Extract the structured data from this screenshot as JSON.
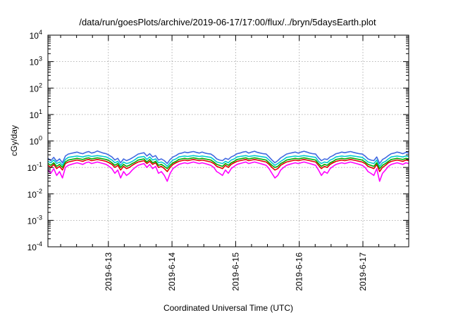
{
  "chart_data": {
    "type": "line",
    "title": "/data/run/goesPlots/archive/2019-06-17/17:00/flux/../bryn/5daysEarth.plot",
    "xlabel": "Coordinated Universal Time (UTC)",
    "ylabel": "cGy/day",
    "yscale": "log",
    "ylim": [
      0.0001,
      10000
    ],
    "xlim": [
      -0.95,
      4.72
    ],
    "grid": true,
    "yticks": [
      {
        "base": "10",
        "exp": "-4"
      },
      {
        "base": "10",
        "exp": "-3"
      },
      {
        "base": "10",
        "exp": "-2"
      },
      {
        "base": "10",
        "exp": "-1"
      },
      {
        "base": "10",
        "exp": "0"
      },
      {
        "base": "10",
        "exp": "1"
      },
      {
        "base": "10",
        "exp": "2"
      },
      {
        "base": "10",
        "exp": "3"
      },
      {
        "base": "10",
        "exp": "4"
      }
    ],
    "xticks": [
      {
        "value": 0,
        "label": "2019-6-13"
      },
      {
        "value": 1,
        "label": "2019-6-14"
      },
      {
        "value": 2,
        "label": "2019-6-15"
      },
      {
        "value": 3,
        "label": "2019-6-16"
      },
      {
        "value": 4,
        "label": "2019-6-17"
      }
    ],
    "series": [
      {
        "color": "#ff00ff",
        "values": [
          0.08,
          0.06,
          0.09,
          0.05,
          0.07,
          0.04,
          0.1,
          0.12,
          0.13,
          0.14,
          0.15,
          0.14,
          0.13,
          0.15,
          0.16,
          0.14,
          0.15,
          0.16,
          0.15,
          0.14,
          0.13,
          0.11,
          0.09,
          0.06,
          0.08,
          0.04,
          0.07,
          0.05,
          0.06,
          0.08,
          0.1,
          0.12,
          0.13,
          0.14,
          0.1,
          0.13,
          0.09,
          0.11,
          0.06,
          0.07,
          0.05,
          0.03,
          0.06,
          0.09,
          0.11,
          0.13,
          0.14,
          0.15,
          0.14,
          0.15,
          0.16,
          0.15,
          0.14,
          0.15,
          0.14,
          0.13,
          0.12,
          0.1,
          0.07,
          0.06,
          0.05,
          0.08,
          0.06,
          0.09,
          0.11,
          0.13,
          0.14,
          0.15,
          0.16,
          0.14,
          0.15,
          0.16,
          0.15,
          0.14,
          0.13,
          0.12,
          0.09,
          0.06,
          0.04,
          0.05,
          0.08,
          0.1,
          0.12,
          0.13,
          0.14,
          0.15,
          0.14,
          0.15,
          0.16,
          0.15,
          0.14,
          0.13,
          0.12,
          0.08,
          0.05,
          0.07,
          0.06,
          0.09,
          0.11,
          0.13,
          0.14,
          0.15,
          0.14,
          0.15,
          0.16,
          0.15,
          0.14,
          0.13,
          0.12,
          0.1,
          0.07,
          0.06,
          0.05,
          0.09,
          0.03,
          0.06,
          0.08,
          0.11,
          0.13,
          0.14,
          0.15,
          0.14,
          0.13,
          0.15,
          0.14
        ]
      },
      {
        "color": "#e00000",
        "values": [
          0.12,
          0.1,
          0.13,
          0.09,
          0.11,
          0.08,
          0.14,
          0.16,
          0.17,
          0.18,
          0.19,
          0.18,
          0.17,
          0.19,
          0.2,
          0.18,
          0.19,
          0.2,
          0.19,
          0.18,
          0.17,
          0.15,
          0.13,
          0.1,
          0.12,
          0.08,
          0.11,
          0.09,
          0.1,
          0.12,
          0.14,
          0.16,
          0.17,
          0.18,
          0.14,
          0.17,
          0.13,
          0.15,
          0.1,
          0.11,
          0.09,
          0.07,
          0.1,
          0.13,
          0.15,
          0.17,
          0.18,
          0.19,
          0.18,
          0.19,
          0.2,
          0.19,
          0.18,
          0.19,
          0.18,
          0.17,
          0.16,
          0.14,
          0.11,
          0.1,
          0.09,
          0.12,
          0.1,
          0.13,
          0.15,
          0.17,
          0.18,
          0.19,
          0.2,
          0.18,
          0.19,
          0.2,
          0.19,
          0.18,
          0.17,
          0.16,
          0.13,
          0.1,
          0.08,
          0.09,
          0.12,
          0.14,
          0.16,
          0.17,
          0.18,
          0.19,
          0.18,
          0.19,
          0.2,
          0.19,
          0.18,
          0.17,
          0.16,
          0.12,
          0.09,
          0.11,
          0.1,
          0.13,
          0.15,
          0.17,
          0.18,
          0.19,
          0.18,
          0.19,
          0.2,
          0.19,
          0.18,
          0.17,
          0.16,
          0.14,
          0.11,
          0.1,
          0.09,
          0.13,
          0.07,
          0.1,
          0.12,
          0.15,
          0.17,
          0.18,
          0.19,
          0.18,
          0.17,
          0.19,
          0.18
        ]
      },
      {
        "color": "#00aa00",
        "values": [
          0.14,
          0.12,
          0.15,
          0.11,
          0.13,
          0.1,
          0.16,
          0.19,
          0.2,
          0.21,
          0.22,
          0.21,
          0.2,
          0.22,
          0.23,
          0.21,
          0.22,
          0.23,
          0.22,
          0.21,
          0.2,
          0.18,
          0.15,
          0.12,
          0.14,
          0.1,
          0.13,
          0.11,
          0.12,
          0.14,
          0.16,
          0.19,
          0.2,
          0.21,
          0.16,
          0.2,
          0.15,
          0.17,
          0.12,
          0.13,
          0.11,
          0.09,
          0.12,
          0.15,
          0.17,
          0.2,
          0.21,
          0.22,
          0.21,
          0.22,
          0.23,
          0.22,
          0.21,
          0.22,
          0.21,
          0.2,
          0.19,
          0.16,
          0.13,
          0.12,
          0.11,
          0.14,
          0.12,
          0.15,
          0.17,
          0.2,
          0.21,
          0.22,
          0.23,
          0.21,
          0.22,
          0.23,
          0.22,
          0.21,
          0.2,
          0.19,
          0.15,
          0.12,
          0.1,
          0.11,
          0.14,
          0.16,
          0.19,
          0.2,
          0.21,
          0.22,
          0.21,
          0.22,
          0.23,
          0.22,
          0.21,
          0.2,
          0.19,
          0.14,
          0.11,
          0.13,
          0.12,
          0.15,
          0.17,
          0.2,
          0.21,
          0.22,
          0.21,
          0.22,
          0.23,
          0.22,
          0.21,
          0.2,
          0.19,
          0.16,
          0.13,
          0.12,
          0.11,
          0.15,
          0.09,
          0.12,
          0.14,
          0.17,
          0.2,
          0.21,
          0.22,
          0.21,
          0.2,
          0.22,
          0.21
        ]
      },
      {
        "color": "#00cccc",
        "values": [
          0.17,
          0.15,
          0.19,
          0.14,
          0.16,
          0.12,
          0.2,
          0.24,
          0.25,
          0.26,
          0.27,
          0.26,
          0.25,
          0.27,
          0.28,
          0.26,
          0.27,
          0.28,
          0.27,
          0.26,
          0.25,
          0.22,
          0.19,
          0.15,
          0.17,
          0.12,
          0.16,
          0.14,
          0.15,
          0.17,
          0.2,
          0.24,
          0.25,
          0.26,
          0.2,
          0.25,
          0.19,
          0.21,
          0.15,
          0.16,
          0.14,
          0.11,
          0.15,
          0.19,
          0.21,
          0.25,
          0.26,
          0.27,
          0.26,
          0.27,
          0.28,
          0.27,
          0.26,
          0.27,
          0.26,
          0.25,
          0.24,
          0.2,
          0.16,
          0.15,
          0.14,
          0.17,
          0.15,
          0.19,
          0.21,
          0.25,
          0.26,
          0.27,
          0.28,
          0.26,
          0.27,
          0.28,
          0.27,
          0.26,
          0.25,
          0.24,
          0.19,
          0.15,
          0.12,
          0.14,
          0.17,
          0.2,
          0.24,
          0.25,
          0.26,
          0.27,
          0.26,
          0.27,
          0.28,
          0.27,
          0.26,
          0.25,
          0.24,
          0.17,
          0.14,
          0.16,
          0.15,
          0.19,
          0.21,
          0.25,
          0.26,
          0.27,
          0.26,
          0.27,
          0.28,
          0.27,
          0.26,
          0.25,
          0.24,
          0.2,
          0.16,
          0.15,
          0.14,
          0.19,
          0.11,
          0.15,
          0.17,
          0.21,
          0.25,
          0.26,
          0.27,
          0.26,
          0.25,
          0.27,
          0.26
        ]
      },
      {
        "color": "#4169e1",
        "values": [
          0.22,
          0.18,
          0.24,
          0.17,
          0.21,
          0.15,
          0.27,
          0.32,
          0.34,
          0.36,
          0.38,
          0.35,
          0.33,
          0.37,
          0.4,
          0.35,
          0.37,
          0.42,
          0.38,
          0.35,
          0.33,
          0.29,
          0.25,
          0.19,
          0.22,
          0.15,
          0.21,
          0.18,
          0.2,
          0.23,
          0.27,
          0.32,
          0.34,
          0.36,
          0.27,
          0.33,
          0.25,
          0.28,
          0.19,
          0.21,
          0.18,
          0.14,
          0.2,
          0.25,
          0.28,
          0.33,
          0.35,
          0.38,
          0.36,
          0.38,
          0.4,
          0.37,
          0.35,
          0.38,
          0.35,
          0.33,
          0.32,
          0.27,
          0.21,
          0.19,
          0.18,
          0.22,
          0.2,
          0.25,
          0.28,
          0.33,
          0.35,
          0.38,
          0.4,
          0.35,
          0.38,
          0.41,
          0.37,
          0.35,
          0.33,
          0.32,
          0.25,
          0.19,
          0.15,
          0.18,
          0.23,
          0.27,
          0.32,
          0.34,
          0.36,
          0.38,
          0.35,
          0.38,
          0.41,
          0.38,
          0.35,
          0.33,
          0.32,
          0.23,
          0.18,
          0.21,
          0.2,
          0.25,
          0.28,
          0.33,
          0.35,
          0.38,
          0.36,
          0.38,
          0.4,
          0.37,
          0.35,
          0.33,
          0.32,
          0.27,
          0.21,
          0.19,
          0.18,
          0.25,
          0.14,
          0.2,
          0.23,
          0.28,
          0.33,
          0.35,
          0.38,
          0.36,
          0.33,
          0.37,
          0.35
        ]
      }
    ]
  }
}
